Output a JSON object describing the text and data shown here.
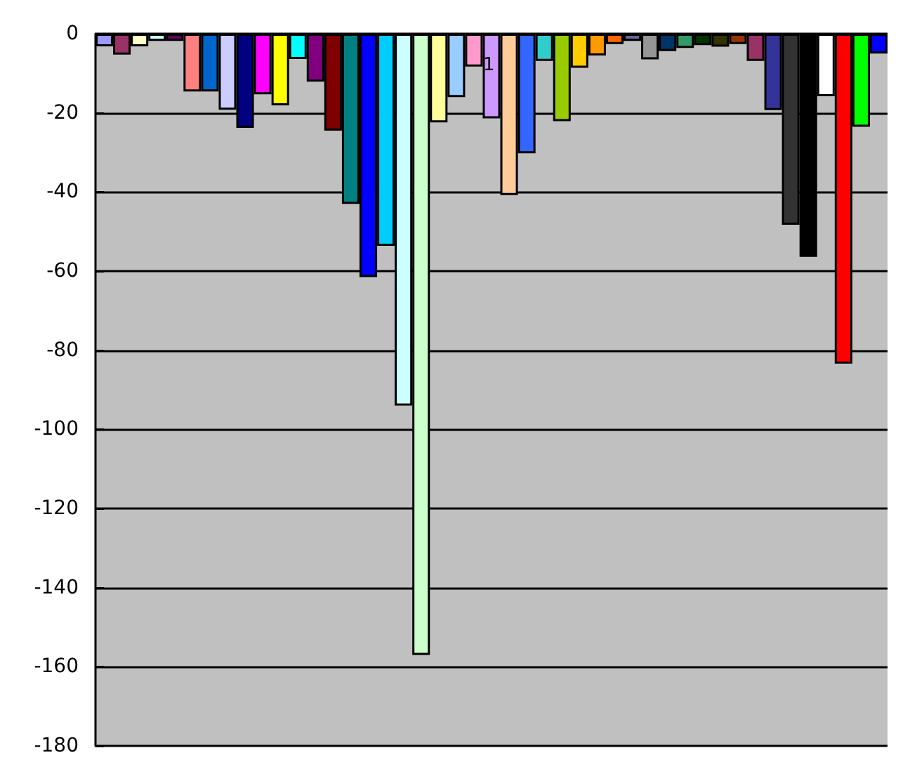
{
  "chart_data": {
    "type": "bar",
    "categories": [
      null,
      null,
      null,
      null,
      null,
      null,
      null,
      null,
      null,
      null,
      null,
      null,
      null,
      null,
      null,
      null,
      null,
      null,
      null,
      null,
      null,
      null,
      null,
      null,
      null,
      null,
      null,
      null,
      null,
      null,
      null,
      null,
      null,
      null,
      null,
      null,
      null,
      null,
      null,
      null,
      null,
      null,
      null,
      null,
      null
    ],
    "values": [
      -3.2,
      -5.3,
      -3.2,
      -1.8,
      -1.8,
      -14.6,
      -14.6,
      -19.2,
      -23.8,
      -15.3,
      -18.1,
      -6.4,
      -12.1,
      -24.5,
      -43,
      -61.5,
      -53.6,
      -94,
      -157,
      -22.4,
      -16,
      -8.3,
      -21.4,
      -40.8,
      -30.2,
      -6.9,
      -22.1,
      -8.6,
      -5.5,
      -2.6,
      -1.8,
      -6.5,
      -4.4,
      -3.6,
      -2.9,
      -3.3,
      -2.6,
      -6.9,
      -19.3,
      -48.3,
      -56.4,
      -15.8,
      -83.4,
      -23.5,
      -5
    ],
    "colors": [
      "#9999ff",
      "#993366",
      "#ffffcc",
      "#ccffff",
      "#660066",
      "#ff8080",
      "#0066cc",
      "#ccccff",
      "#000080",
      "#ff00ff",
      "#ffff00",
      "#00ffff",
      "#800080",
      "#800000",
      "#008080",
      "#0000ff",
      "#00ccff",
      "#ccffff",
      "#ccffcc",
      "#ffff99",
      "#99ccff",
      "#ff99cc",
      "#cc99ff",
      "#ffcc99",
      "#3366ff",
      "#33cccc",
      "#99cc00",
      "#ffcc00",
      "#ff9900",
      "#ff6600",
      "#666699",
      "#969696",
      "#003366",
      "#339966",
      "#003300",
      "#333300",
      "#993300",
      "#993366",
      "#333399",
      "#333333",
      "#000000",
      "#ffffff",
      "#ff0000",
      "#00ff00",
      "#0000ff"
    ],
    "annotations": [
      "1"
    ],
    "ylim": [
      -180,
      0
    ],
    "yticks": [
      -180,
      -160,
      -140,
      -120,
      -100,
      -80,
      -60,
      -40,
      -20,
      0
    ],
    "grid": "y",
    "tick_labels": "y"
  }
}
